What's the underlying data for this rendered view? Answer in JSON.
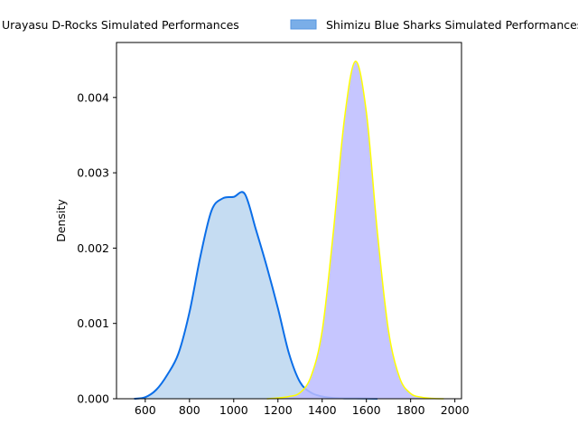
{
  "chart_data": {
    "type": "area",
    "title": "",
    "xlabel": "",
    "ylabel": "Density",
    "xlim": [
      470,
      2030
    ],
    "ylim": [
      0,
      0.00473
    ],
    "xticks": [
      600,
      800,
      1000,
      1200,
      1400,
      1600,
      1800,
      2000
    ],
    "yticks": [
      0,
      0.001,
      0.002,
      0.003,
      0.004
    ],
    "ytick_labels": [
      "0.000",
      "0.001",
      "0.002",
      "0.003",
      "0.004"
    ],
    "legend_position": "top, above plot",
    "grid": false,
    "series": [
      {
        "name": "Urayasu D-Rocks Simulated Performances",
        "line_color": "#0b6ee8",
        "fill_color": "#c5dcf2",
        "x": [
          550,
          600,
          650,
          700,
          750,
          800,
          850,
          900,
          950,
          1000,
          1050,
          1100,
          1150,
          1200,
          1250,
          1300,
          1350,
          1400,
          1450,
          1500,
          1550,
          1600,
          1650
        ],
        "y": [
          0.0,
          2e-05,
          0.00012,
          0.00032,
          0.0006,
          0.00115,
          0.0019,
          0.0025,
          0.00266,
          0.00268,
          0.00272,
          0.00225,
          0.00175,
          0.0012,
          0.0006,
          0.00022,
          8e-05,
          3e-05,
          1e-05,
          5e-06,
          5e-06,
          3e-06,
          0.0
        ]
      },
      {
        "name": "Shimizu Blue Sharks Simulated Performances",
        "line_color": "#ffff00",
        "fill_color": "#bcbcff",
        "x": [
          1150,
          1200,
          1250,
          1300,
          1350,
          1400,
          1450,
          1500,
          1550,
          1600,
          1650,
          1700,
          1750,
          1800,
          1850,
          1900,
          1950
        ],
        "y": [
          0.0,
          1e-05,
          3e-05,
          8e-05,
          0.0003,
          0.0009,
          0.0022,
          0.0037,
          0.00448,
          0.0038,
          0.0022,
          0.0009,
          0.00028,
          7e-05,
          2e-05,
          5e-06,
          0.0
        ]
      }
    ]
  },
  "legend": {
    "swatch_color": "#7aaee8",
    "swatch_edge": "#5596e0",
    "items": [
      "Urayasu D-Rocks Simulated Performances",
      "Shimizu Blue Sharks Simulated Performances"
    ]
  }
}
